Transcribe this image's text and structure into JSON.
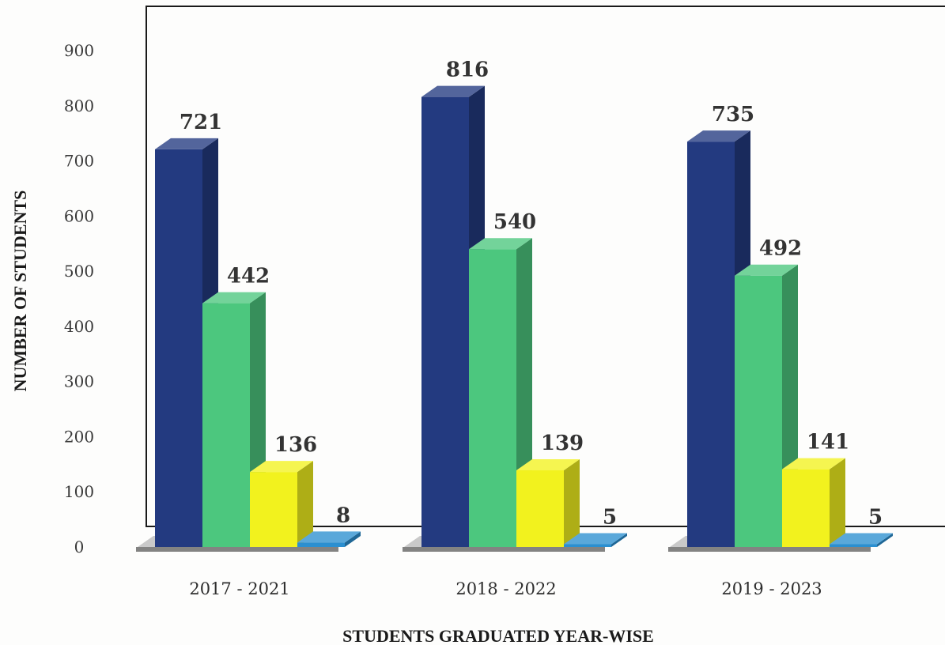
{
  "chart_data": {
    "type": "bar",
    "xlabel": "STUDENTS GRADUATED YEAR-WISE",
    "ylabel": "NUMBER OF STUDENTS",
    "ylim": [
      0,
      900
    ],
    "yticks": [
      0,
      100,
      200,
      300,
      400,
      500,
      600,
      700,
      800,
      900
    ],
    "categories": [
      "2017 - 2021",
      "2018 - 2022",
      "2019 - 2023"
    ],
    "series": [
      {
        "values": [
          721,
          816,
          735
        ],
        "color": "#233a80"
      },
      {
        "values": [
          442,
          540,
          492
        ],
        "color": "#4cc77e"
      },
      {
        "values": [
          136,
          139,
          141
        ],
        "color": "#f2f21e"
      },
      {
        "values": [
          8,
          5,
          5
        ],
        "color": "#2b8fd0"
      }
    ],
    "data_labels": [
      [
        "721",
        "442",
        "136",
        "8"
      ],
      [
        "816",
        "540",
        "139",
        "5"
      ],
      [
        "735",
        "492",
        "141",
        "5"
      ]
    ],
    "grid": false,
    "legend": "none",
    "style": "3d"
  }
}
